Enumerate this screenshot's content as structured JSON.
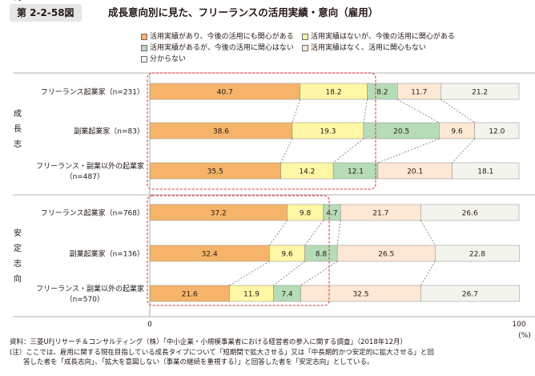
{
  "figure": {
    "label": "第 2-2-58図",
    "title": "成長意向別に見た、フリーランスの活用実績・意向（雇用）"
  },
  "chart_data": {
    "type": "bar",
    "orientation": "horizontal",
    "stacked": true,
    "xlim": [
      0,
      100
    ],
    "x_ticks": [
      "0",
      "100"
    ],
    "x_unit": "(%)",
    "legend_position": "top",
    "categories": [
      "フリーランス起業家（n=231）",
      "副業起業家（n=83）",
      "フリーランス・副業以外の起業家\n（n=487）",
      "フリーランス起業家（n=768）",
      "副業起業家（n=136）",
      "フリーランス・副業以外の起業家\n（n=570）"
    ],
    "groups": [
      {
        "label": "成長志向",
        "rows": [
          0,
          1,
          2
        ]
      },
      {
        "label": "安定志向",
        "rows": [
          3,
          4,
          5
        ]
      }
    ],
    "series": [
      {
        "name": "活用実績があり、今後の活用にも関心がある",
        "color": "#f5b469",
        "values": [
          40.7,
          38.6,
          35.5,
          37.2,
          32.4,
          21.6
        ]
      },
      {
        "name": "活用実績はないが、今後の活用に関心がある",
        "color": "#fff7a6",
        "values": [
          18.2,
          19.3,
          14.2,
          9.8,
          9.6,
          11.9
        ]
      },
      {
        "name": "活用実績があるが、今後の活用に関心はない",
        "color": "#b6dcb7",
        "values": [
          8.2,
          20.5,
          12.1,
          4.7,
          8.8,
          7.4
        ]
      },
      {
        "name": "活用実績はなく、活用に関心もない",
        "color": "#fde8d5",
        "values": [
          11.7,
          9.6,
          20.1,
          21.7,
          26.5,
          32.5
        ]
      },
      {
        "name": "分からない",
        "color": "#f4f4ee",
        "values": [
          21.2,
          12.0,
          18.1,
          26.6,
          22.8,
          26.7
        ]
      }
    ]
  },
  "notes": {
    "source": "資料：三菱UFJリサーチ＆コンサルティング（株）「中小企業・小規模事業者における経営者の参入に関する調査」（2018年12月）",
    "note_line1": "(注）ここでは、雇用に関する現在目指している成長タイプについて「短期間で拡大させる」又は「中長期的かつ安定的に拡大させる」と回",
    "note_line2": "　　答した者を「成長志向」、「拡大を意図しない（事業の継続を重視する）」と回答した者を「安定志向」としている。"
  }
}
